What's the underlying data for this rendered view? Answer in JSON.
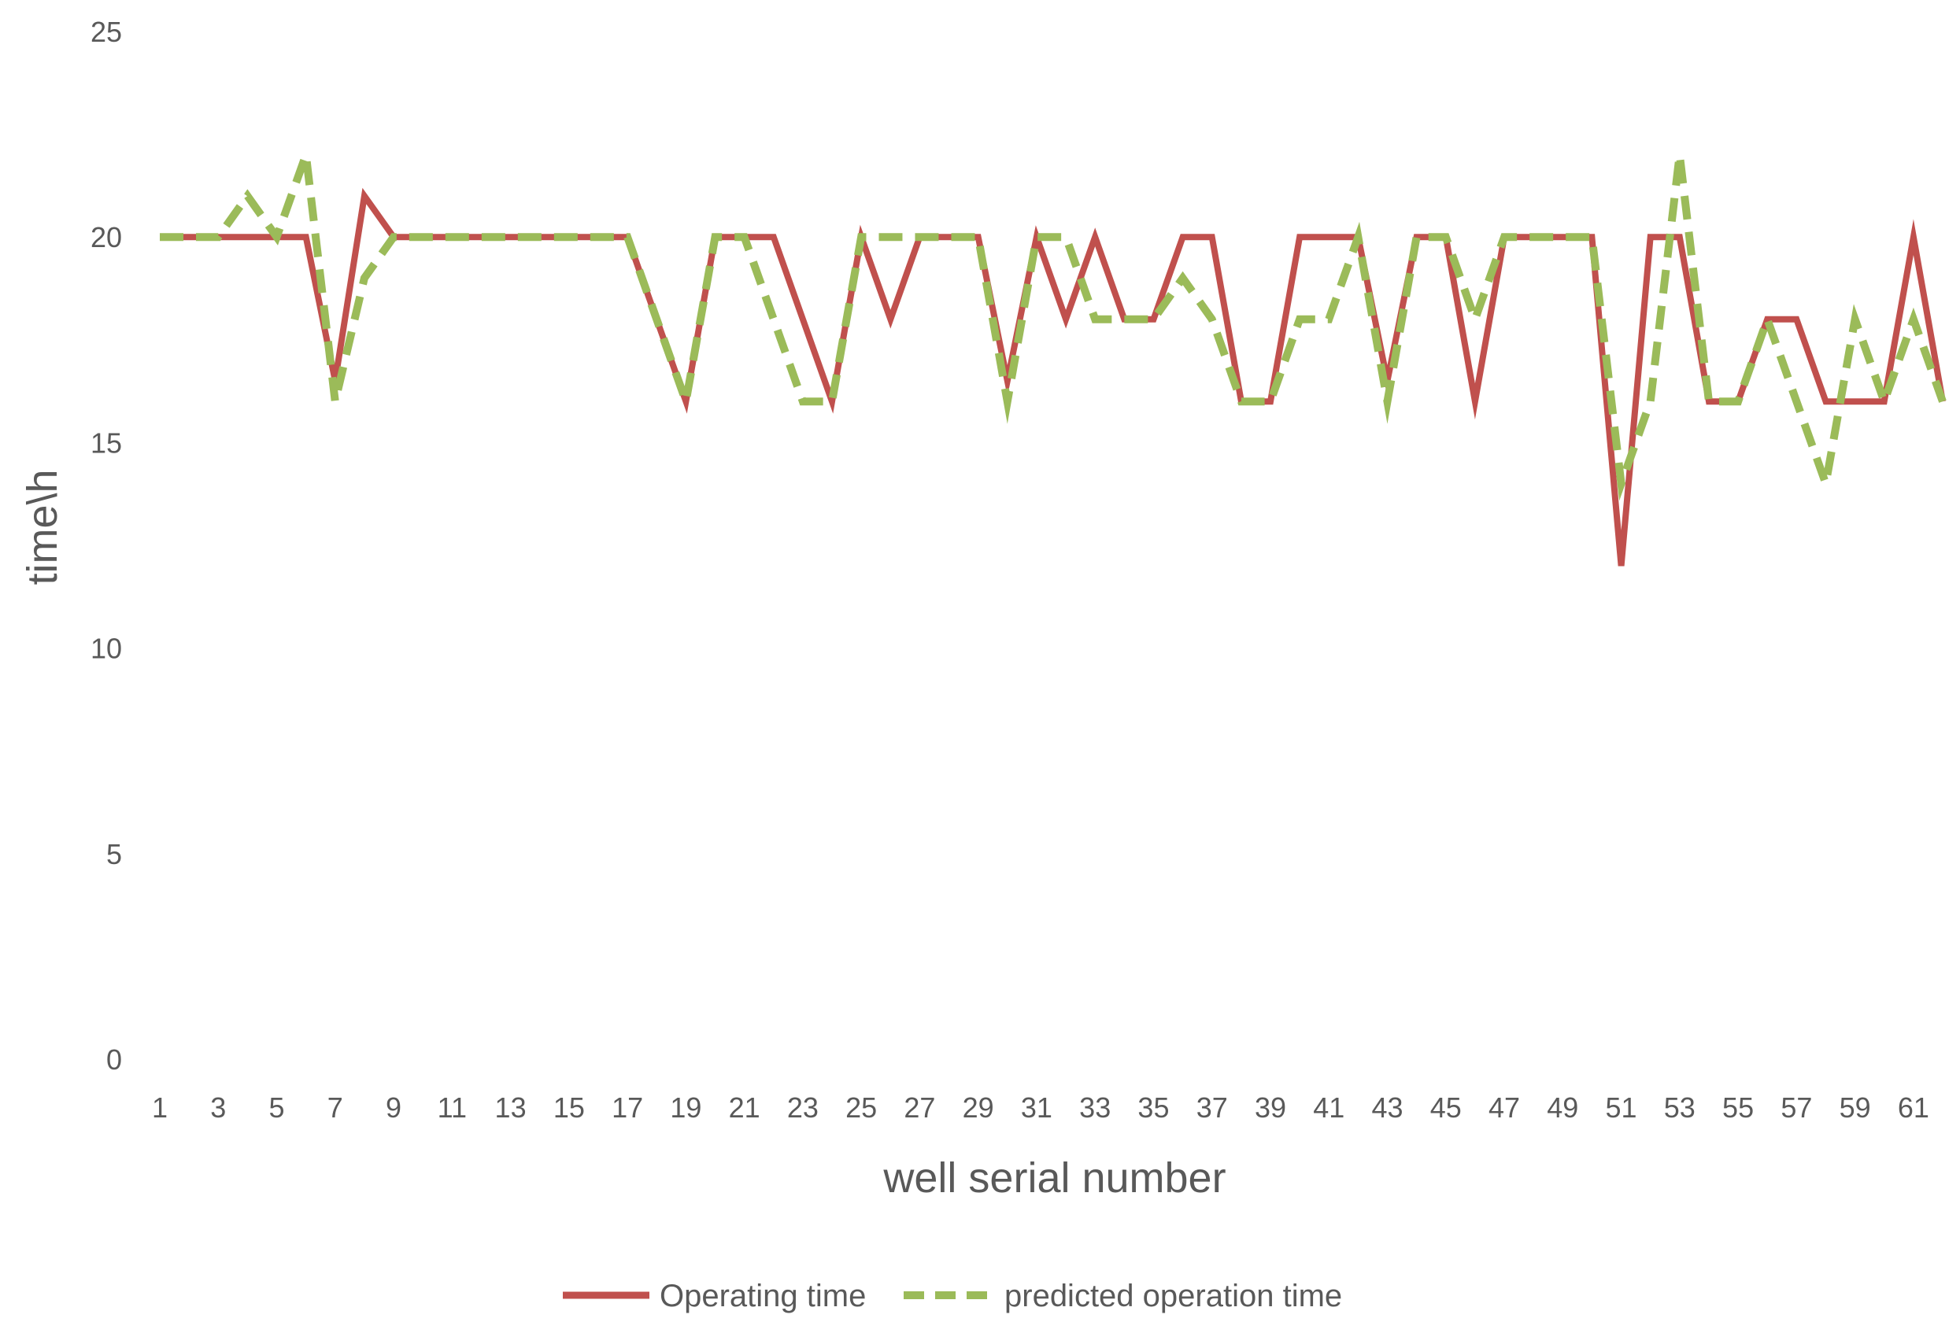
{
  "chart_data": {
    "type": "line",
    "title": "",
    "xlabel": "well serial number",
    "ylabel": "time\\h",
    "ylim": [
      0,
      25
    ],
    "yticks": [
      0,
      5,
      10,
      15,
      20,
      25
    ],
    "x": [
      1,
      2,
      3,
      4,
      5,
      6,
      7,
      8,
      9,
      10,
      11,
      12,
      13,
      14,
      15,
      16,
      17,
      18,
      19,
      20,
      21,
      22,
      23,
      24,
      25,
      26,
      27,
      28,
      29,
      30,
      31,
      32,
      33,
      34,
      35,
      36,
      37,
      38,
      39,
      40,
      41,
      42,
      43,
      44,
      45,
      46,
      47,
      48,
      49,
      50,
      51,
      52,
      53,
      54,
      55,
      56,
      57,
      58,
      59,
      60,
      61,
      62
    ],
    "xtick_labels": [
      "1",
      "3",
      "5",
      "7",
      "9",
      "11",
      "13",
      "15",
      "17",
      "19",
      "21",
      "23",
      "25",
      "27",
      "29",
      "31",
      "33",
      "35",
      "37",
      "39",
      "41",
      "43",
      "45",
      "47",
      "49",
      "51",
      "53",
      "55",
      "57",
      "59",
      "61"
    ],
    "grid": false,
    "legend_position": "bottom",
    "series": [
      {
        "name": "Operating time",
        "color": "#c0504d",
        "style": "solid",
        "values": [
          20,
          20,
          20,
          20,
          20,
          20,
          16.5,
          21,
          20,
          20,
          20,
          20,
          20,
          20,
          20,
          20,
          20,
          18,
          16,
          20,
          20,
          20,
          18,
          16,
          20,
          18,
          20,
          20,
          20,
          16.5,
          20,
          18,
          20,
          18,
          18,
          20,
          20,
          16,
          16,
          20,
          20,
          20,
          16.5,
          20,
          20,
          16,
          20,
          20,
          20,
          20,
          12,
          20,
          20,
          16,
          16,
          18,
          18,
          16,
          16,
          16,
          20,
          16
        ]
      },
      {
        "name": "predicted operation time",
        "color": "#9bbb59",
        "style": "dashed",
        "values": [
          20,
          20,
          20,
          21,
          20,
          22,
          16,
          19,
          20,
          20,
          20,
          20,
          20,
          20,
          20,
          20,
          20,
          18,
          16,
          20,
          20,
          18,
          16,
          16,
          20,
          20,
          20,
          20,
          20,
          16,
          20,
          20,
          18,
          18,
          18,
          19,
          18,
          16,
          16,
          18,
          18,
          20,
          16,
          20,
          20,
          18,
          20,
          20,
          20,
          20,
          14,
          16,
          22,
          16,
          16,
          18,
          16,
          14,
          18,
          16,
          18,
          16
        ]
      }
    ]
  }
}
